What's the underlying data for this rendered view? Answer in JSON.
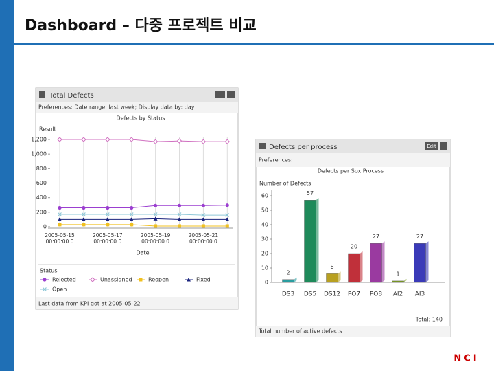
{
  "slide": {
    "title": "Dashboard – 다중 프로젝트 비교",
    "logo": "NCI"
  },
  "widgets": [
    {
      "title": "Total Defects",
      "preferences": "Preferences: Date range: last week; Display data by: day",
      "footer": "Last data from KPI got at 2005-05-22"
    },
    {
      "title": "Defects per process",
      "button": "Edit",
      "preferences": "Preferences:",
      "footer": "Total number of active defects"
    }
  ],
  "chart_data": [
    {
      "type": "line",
      "title": "Defects by Status",
      "y_label": "Result",
      "x_label": "Date",
      "legend_title": "Status",
      "grid": "x",
      "categories": [
        "2005-05-15 00:00:00.0",
        null,
        "2005-05-17 00:00:00.0",
        null,
        "2005-05-19 00:00:00.0",
        null,
        "2005-05-21 00:00:00.0",
        null
      ],
      "ylim": [
        0,
        1200
      ],
      "yticks": [
        0,
        200,
        400,
        600,
        800,
        {
          "value": 1000,
          "label": "1,000"
        },
        {
          "value": 1200,
          "label": "1,200"
        }
      ],
      "series": [
        {
          "name": "Rejected",
          "color": "#9b3fd0",
          "marker": "circle",
          "values": [
            260,
            260,
            260,
            260,
            290,
            290,
            290,
            295
          ]
        },
        {
          "name": "Unassigned",
          "color": "#d070c0",
          "marker": "diamond-open",
          "values": [
            1200,
            1200,
            1200,
            1200,
            1170,
            1180,
            1170,
            1170
          ]
        },
        {
          "name": "Reopen",
          "color": "#f0c020",
          "marker": "square",
          "values": [
            30,
            30,
            30,
            30,
            10,
            10,
            10,
            10
          ]
        },
        {
          "name": "Fixed",
          "color": "#1a237e",
          "marker": "triangle",
          "values": [
            100,
            100,
            100,
            100,
            110,
            100,
            100,
            100
          ]
        },
        {
          "name": "Open",
          "color": "#90c8d8",
          "marker": "x",
          "values": [
            170,
            170,
            170,
            170,
            170,
            170,
            160,
            160
          ]
        }
      ]
    },
    {
      "type": "bar",
      "title": "Defects per Sox Process",
      "y_label": "Number of Defects",
      "annotation": "Total: 140",
      "categories": [
        "DS3",
        "DS5",
        "DS12",
        "PO7",
        "PO8",
        "AI2",
        "AI3"
      ],
      "values": [
        2,
        57,
        6,
        20,
        27,
        1,
        27
      ],
      "colors": [
        "#2a9da0",
        "#1e8a5a",
        "#b8a020",
        "#c0303a",
        "#9a3aa0",
        "#7a9a20",
        "#3a3ab8"
      ],
      "ylim": [
        0,
        60
      ],
      "yticks": [
        0,
        10,
        20,
        30,
        40,
        50,
        60
      ]
    }
  ]
}
